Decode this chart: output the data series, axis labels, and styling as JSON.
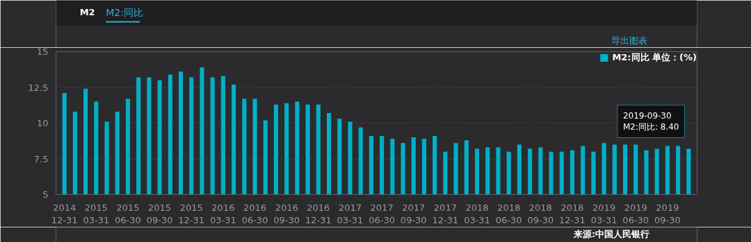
{
  "chart_data": {
    "type": "bar",
    "title": "M2:同比",
    "categories": [
      "2014\n12-31",
      null,
      null,
      "2015\n03-31",
      null,
      null,
      "2015\n06-30",
      null,
      null,
      "2015\n09-30",
      null,
      null,
      "2015\n12-31",
      null,
      null,
      "2016\n03-31",
      null,
      null,
      "2016\n06-30",
      null,
      null,
      "2016\n09-30",
      null,
      null,
      "2016\n12-31",
      null,
      null,
      "2017\n03-31",
      null,
      null,
      "2017\n06-30",
      null,
      null,
      "2017\n09-30",
      null,
      null,
      "2017\n12-31",
      null,
      null,
      "2018\n03-31",
      null,
      null,
      "2018\n06-30",
      null,
      null,
      "2018\n09-30",
      null,
      null,
      "2018\n12-31",
      null,
      null,
      "2019\n03-31",
      null,
      null,
      "2019\n06-30",
      null,
      null,
      "2019\n09-30",
      null,
      null
    ],
    "series": [
      {
        "name": "M2:同比 单位：(%)",
        "color": "#00b0c8",
        "values": [
          12.1,
          10.8,
          12.4,
          11.5,
          10.1,
          10.8,
          11.7,
          13.2,
          13.2,
          13.0,
          13.4,
          13.6,
          13.2,
          13.9,
          13.2,
          13.3,
          12.7,
          11.7,
          11.7,
          10.2,
          11.3,
          11.4,
          11.5,
          11.3,
          11.3,
          10.7,
          10.3,
          10.1,
          9.7,
          9.1,
          9.1,
          8.9,
          8.6,
          9.0,
          8.9,
          9.1,
          8.0,
          8.6,
          8.8,
          8.2,
          8.3,
          8.3,
          8.0,
          8.5,
          8.2,
          8.3,
          8.0,
          8.0,
          8.1,
          8.4,
          8.0,
          8.6,
          8.5,
          8.5,
          8.5,
          8.1,
          8.2,
          8.4,
          8.4,
          8.2
        ]
      }
    ],
    "ylim": [
      5,
      15
    ],
    "yticks": [
      5,
      7.5,
      10,
      12.5,
      15
    ],
    "grid": "y",
    "legend": "top right",
    "annotations": [
      "M2",
      "导出图表",
      "来源:中国人民银行",
      {
        "text": "2019-09-30\nM2:同比: 8.40",
        "x": "2019\n09-30",
        "y": 8.4
      }
    ]
  }
}
